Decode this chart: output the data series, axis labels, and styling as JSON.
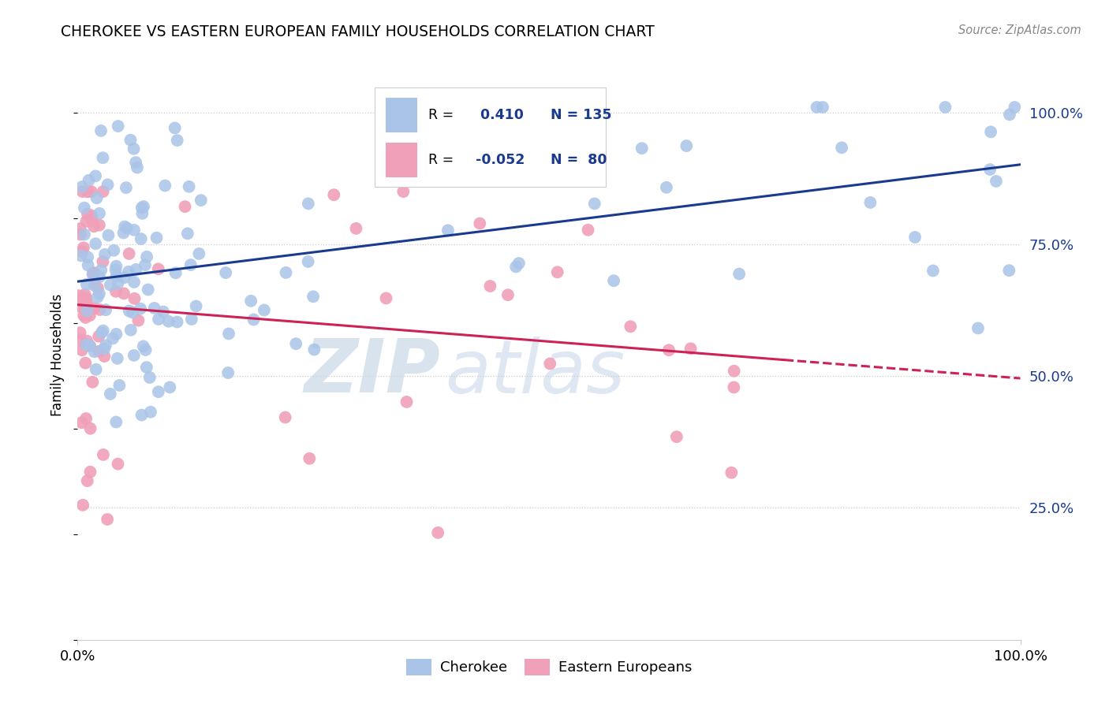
{
  "title": "CHEROKEE VS EASTERN EUROPEAN FAMILY HOUSEHOLDS CORRELATION CHART",
  "source": "Source: ZipAtlas.com",
  "ylabel": "Family Households",
  "blue_color": "#aac4e8",
  "pink_color": "#f0a0b8",
  "blue_line_color": "#1a3a8f",
  "pink_line_color": "#cc2255",
  "watermark_zip": "ZIP",
  "watermark_atlas": "atlas",
  "legend_r1": "R = ",
  "legend_v1": " 0.410",
  "legend_n1": "N = 135",
  "legend_r2": "R =",
  "legend_v2": "-0.052",
  "legend_n2": "N=  80",
  "blue_seed": 42,
  "pink_seed": 99,
  "blue_n": 135,
  "pink_n": 80
}
